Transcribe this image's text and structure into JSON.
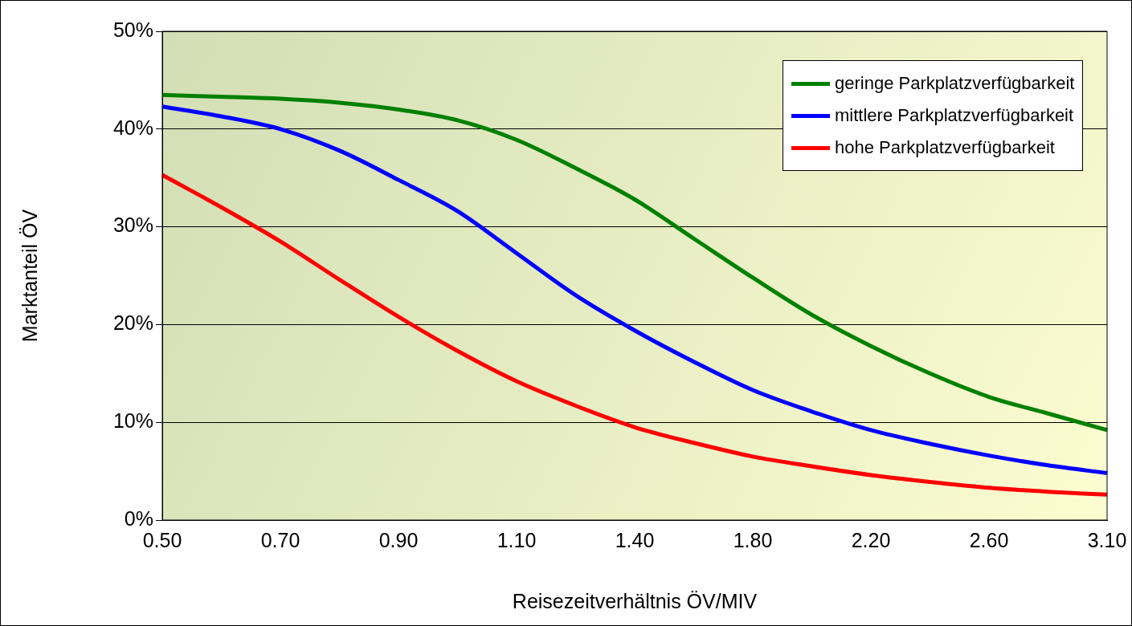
{
  "chart_data": {
    "type": "line",
    "xlabel": "Reisezeitverhältnis ÖV/MIV",
    "ylabel": "Marktanteil ÖV",
    "categories": [
      "0.50",
      null,
      "0.70",
      null,
      "0.90",
      null,
      "1.10",
      null,
      "1.40",
      null,
      "1.80",
      null,
      "2.20",
      null,
      "2.60",
      null,
      "3.10"
    ],
    "series": [
      {
        "name": "geringe Parkplatzverfügbarkeit",
        "color": "#008000",
        "values": [
          43.5,
          43.3,
          43.1,
          42.7,
          42.0,
          40.9,
          38.9,
          36.0,
          32.8,
          28.8,
          24.8,
          21.0,
          17.8,
          15.0,
          12.6,
          10.9,
          9.2
        ]
      },
      {
        "name": "mittlere Parkplatzverfügbarkeit",
        "color": "#0000ff",
        "values": [
          42.3,
          41.3,
          40.0,
          37.8,
          34.8,
          31.6,
          27.3,
          23.0,
          19.4,
          16.2,
          13.3,
          11.1,
          9.2,
          7.8,
          6.6,
          5.6,
          4.8
        ]
      },
      {
        "name": "hohe Parkplatzverfügbarkeit",
        "color": "#ff0000",
        "values": [
          35.3,
          32.0,
          28.5,
          24.6,
          20.8,
          17.3,
          14.2,
          11.7,
          9.5,
          7.9,
          6.5,
          5.5,
          4.6,
          3.9,
          3.3,
          2.9,
          2.6
        ]
      }
    ],
    "ylim": [
      0,
      50
    ],
    "yticks": [
      {
        "value": 0,
        "label": "0%"
      },
      {
        "value": 10,
        "label": "10%"
      },
      {
        "value": 20,
        "label": "20%"
      },
      {
        "value": 30,
        "label": "30%"
      },
      {
        "value": 40,
        "label": "40%"
      },
      {
        "value": 50,
        "label": "50%"
      }
    ],
    "grid": "y",
    "legend": "top right",
    "marker": "none",
    "line_style": "solid"
  }
}
